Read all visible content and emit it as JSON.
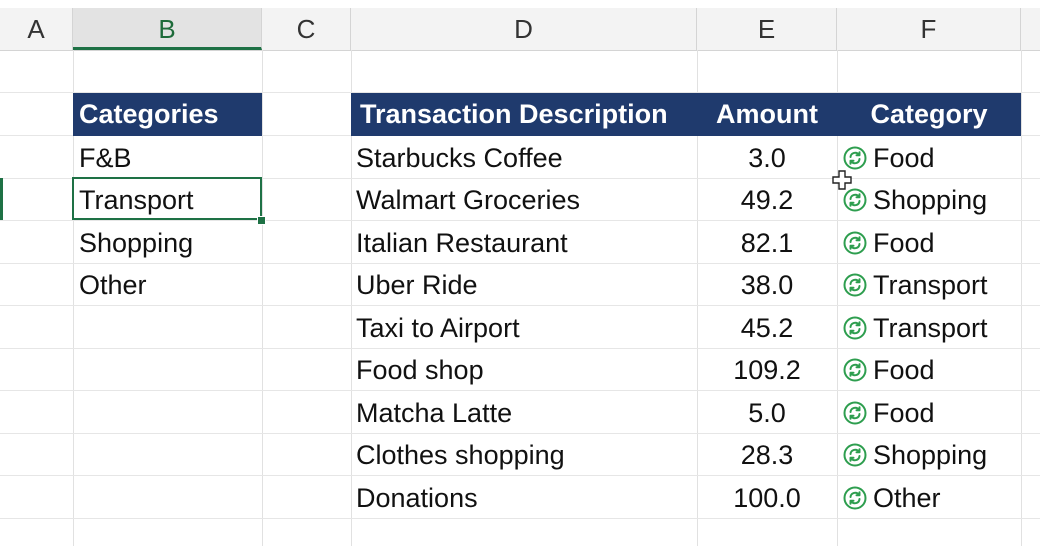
{
  "columns": [
    "A",
    "B",
    "C",
    "D",
    "E",
    "F"
  ],
  "categories_list": {
    "header": "Categories",
    "items": [
      "F&B",
      "Transport",
      "Shopping",
      "Other"
    ]
  },
  "transactions": {
    "headers": {
      "description": "Transaction Description",
      "amount": "Amount",
      "category": "Category"
    },
    "rows": [
      {
        "description": "Starbucks Coffee",
        "amount": "3.0",
        "category": "Food"
      },
      {
        "description": "Walmart Groceries",
        "amount": "49.2",
        "category": "Shopping"
      },
      {
        "description": "Italian Restaurant",
        "amount": "82.1",
        "category": "Food"
      },
      {
        "description": "Uber Ride",
        "amount": "38.0",
        "category": "Transport"
      },
      {
        "description": "Taxi to Airport",
        "amount": "45.2",
        "category": "Transport"
      },
      {
        "description": "Food shop",
        "amount": "109.2",
        "category": "Food"
      },
      {
        "description": "Matcha Latte",
        "amount": "5.0",
        "category": "Food"
      },
      {
        "description": "Clothes shopping",
        "amount": "28.3",
        "category": "Shopping"
      },
      {
        "description": "Donations",
        "amount": "100.0",
        "category": "Other"
      }
    ]
  },
  "icons": {
    "category_cell": "refresh-formula-icon",
    "pointer": "cell-cursor-icon"
  },
  "colors": {
    "header_bg": "#1f3a6d",
    "accent_green": "#1e7145",
    "icon_green": "#2e9e4f"
  }
}
